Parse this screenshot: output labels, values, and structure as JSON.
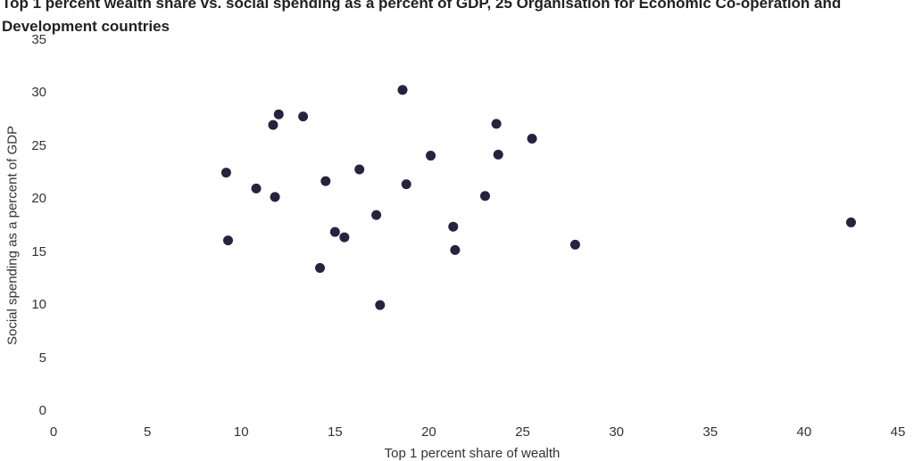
{
  "chart_data": {
    "type": "scatter",
    "title": "Top 1 percent wealth share vs. social spending as a percent of GDP, 25 Organisation for Economic Co-operation and Development countries",
    "xlabel": "Top 1 percent share of wealth",
    "ylabel": "Social spending as a percent of GDP",
    "xlim": [
      0,
      45
    ],
    "ylim": [
      0,
      35
    ],
    "x_ticks": [
      "0",
      "5",
      "10",
      "15",
      "20",
      "25",
      "30",
      "35",
      "40",
      "45"
    ],
    "y_ticks": [
      "0",
      "5",
      "10",
      "15",
      "20",
      "25",
      "30",
      "35"
    ],
    "grid": false,
    "marker_color": "#27223f",
    "points": [
      {
        "x": 9.2,
        "y": 22.5
      },
      {
        "x": 9.3,
        "y": 16.1
      },
      {
        "x": 10.8,
        "y": 21.0
      },
      {
        "x": 11.7,
        "y": 27.0
      },
      {
        "x": 12.0,
        "y": 28.0
      },
      {
        "x": 11.8,
        "y": 20.2
      },
      {
        "x": 13.3,
        "y": 27.8
      },
      {
        "x": 14.2,
        "y": 13.5
      },
      {
        "x": 14.5,
        "y": 21.7
      },
      {
        "x": 15.0,
        "y": 16.9
      },
      {
        "x": 15.5,
        "y": 16.4
      },
      {
        "x": 16.3,
        "y": 22.8
      },
      {
        "x": 17.2,
        "y": 18.5
      },
      {
        "x": 17.4,
        "y": 10.0
      },
      {
        "x": 18.6,
        "y": 30.3
      },
      {
        "x": 18.8,
        "y": 21.4
      },
      {
        "x": 20.1,
        "y": 24.1
      },
      {
        "x": 21.3,
        "y": 17.4
      },
      {
        "x": 21.4,
        "y": 15.2
      },
      {
        "x": 23.0,
        "y": 20.3
      },
      {
        "x": 23.6,
        "y": 27.1
      },
      {
        "x": 23.7,
        "y": 24.2
      },
      {
        "x": 25.5,
        "y": 25.7
      },
      {
        "x": 27.8,
        "y": 15.7
      },
      {
        "x": 42.5,
        "y": 17.8
      }
    ]
  }
}
